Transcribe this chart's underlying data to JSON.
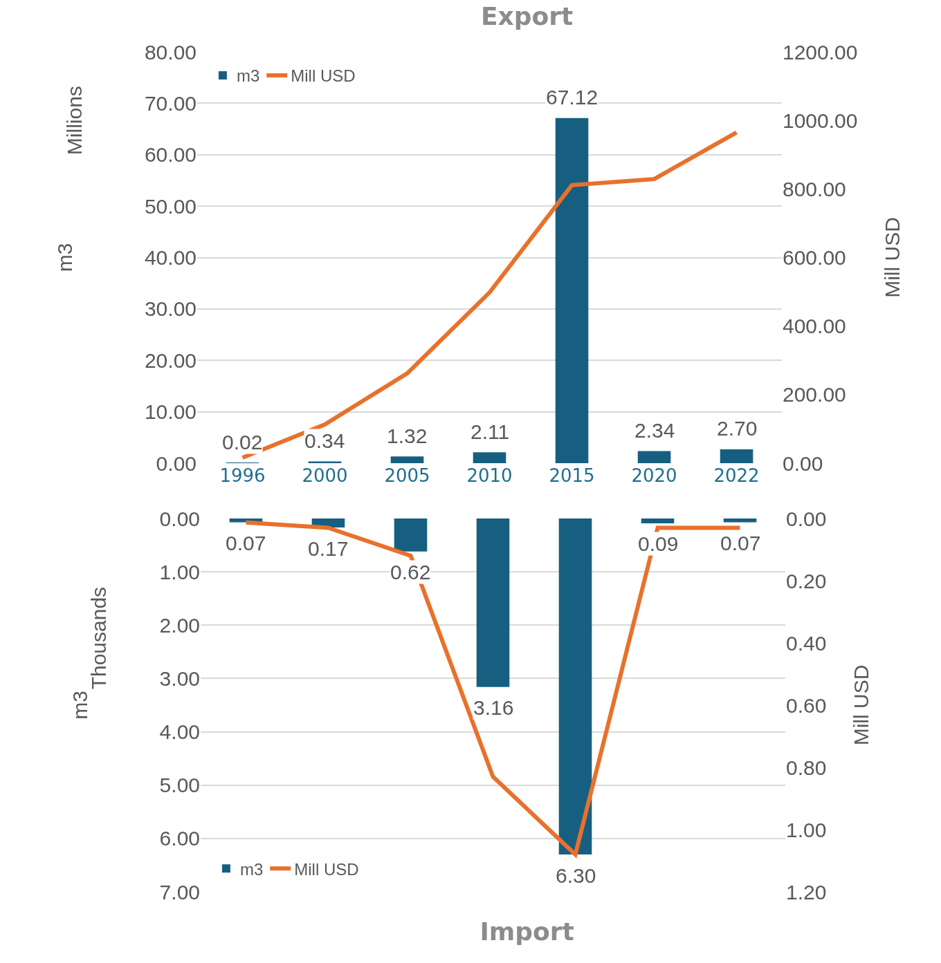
{
  "chart_data": [
    {
      "type": "bar",
      "title": "Export",
      "categories": [
        "1996",
        "2000",
        "2005",
        "2010",
        "2015",
        "2020",
        "2022"
      ],
      "series": [
        {
          "name": "m3",
          "color": "#175f80",
          "values": [
            0.02,
            0.34,
            1.32,
            2.11,
            67.12,
            2.34,
            2.7
          ],
          "value_labels": [
            "0.02",
            "0.34",
            "1.32",
            "2.11",
            "67.12",
            "2.34",
            "2.70"
          ]
        },
        {
          "name": "Mill USD",
          "type": "line",
          "axis": "y2",
          "color": "#e8712c",
          "values": [
            16,
            113,
            262,
            498,
            811,
            829,
            965
          ]
        }
      ],
      "ylabel": "m3",
      "y2label": "Mill USD",
      "annotations": [
        "Millions"
      ],
      "ylim": [
        0,
        80
      ],
      "yticks": [
        {
          "value": 0,
          "label": "0.00"
        },
        {
          "value": 10,
          "label": "10.00"
        },
        {
          "value": 20,
          "label": "20.00"
        },
        {
          "value": 30,
          "label": "30.00"
        },
        {
          "value": 40,
          "label": "40.00"
        },
        {
          "value": 50,
          "label": "50.00"
        },
        {
          "value": 60,
          "label": "60.00"
        },
        {
          "value": 70,
          "label": "70.00"
        },
        {
          "value": 80,
          "label": "80.00"
        }
      ],
      "y2lim": [
        0,
        1200
      ],
      "y2ticks": [
        {
          "value": 0,
          "label": "0.00"
        },
        {
          "value": 200,
          "label": "200.00"
        },
        {
          "value": 400,
          "label": "400.00"
        },
        {
          "value": 600,
          "label": "600.00"
        },
        {
          "value": 800,
          "label": "800.00"
        },
        {
          "value": 1000,
          "label": "1000.00"
        },
        {
          "value": 1200,
          "label": "1200.00"
        }
      ],
      "grid": "y",
      "legend": "top left",
      "marker": "none"
    },
    {
      "type": "bar",
      "title": "Import",
      "categories": [
        "1996",
        "2000",
        "2005",
        "2010",
        "2015",
        "2020",
        "2022"
      ],
      "series": [
        {
          "name": "m3",
          "color": "#175f80",
          "values": [
            0.07,
            0.17,
            0.62,
            3.16,
            6.3,
            0.09,
            0.07
          ],
          "value_labels": [
            "0.07",
            "0.17",
            "0.62",
            "3.16",
            "6.30",
            "0.09",
            "0.07"
          ]
        },
        {
          "name": "Mill USD",
          "type": "line",
          "axis": "y2",
          "color": "#e8712c",
          "values": [
            0.013,
            0.03,
            0.12,
            0.83,
            1.08,
            0.03,
            0.03
          ]
        }
      ],
      "ylabel": "m3",
      "y2label": "Mill USD",
      "annotations": [
        "Thousands"
      ],
      "ylim": [
        7,
        0
      ],
      "yticks": [
        {
          "value": 0,
          "label": "0.00"
        },
        {
          "value": 1,
          "label": "1.00"
        },
        {
          "value": 2,
          "label": "2.00"
        },
        {
          "value": 3,
          "label": "3.00"
        },
        {
          "value": 4,
          "label": "4.00"
        },
        {
          "value": 5,
          "label": "5.00"
        },
        {
          "value": 6,
          "label": "6.00"
        },
        {
          "value": 7,
          "label": "7.00"
        }
      ],
      "y2lim": [
        1.2,
        0
      ],
      "y2ticks": [
        {
          "value": 0,
          "label": "0.00"
        },
        {
          "value": 0.2,
          "label": "0.20"
        },
        {
          "value": 0.4,
          "label": "0.40"
        },
        {
          "value": 0.6,
          "label": "0.60"
        },
        {
          "value": 0.8,
          "label": "0.80"
        },
        {
          "value": 1,
          "label": "1.00"
        },
        {
          "value": 1.2,
          "label": "1.20"
        }
      ],
      "tick_labels": "y",
      "grid": "y",
      "legend": "bottom left",
      "marker": "none"
    }
  ]
}
